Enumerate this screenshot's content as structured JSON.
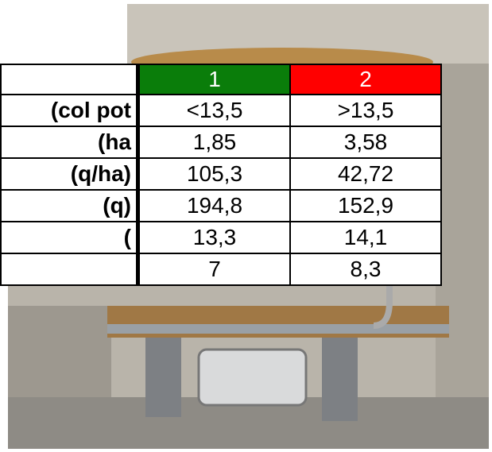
{
  "table": {
    "header": [
      "1",
      "2"
    ],
    "rows": [
      {
        "label": "col pot)",
        "values": [
          "<13,5",
          ">13,5"
        ]
      },
      {
        "label": "ha)",
        "values": [
          "1,85",
          "3,58"
        ]
      },
      {
        "label": "(q/ha)",
        "values": [
          "105,3",
          "42,72"
        ]
      },
      {
        "label": "(q)",
        "values": [
          "194,8",
          "152,9"
        ]
      },
      {
        "label": ")",
        "values": [
          "13,3",
          "14,1"
        ]
      },
      {
        "values": [
          "7",
          "8,3"
        ]
      }
    ]
  }
}
